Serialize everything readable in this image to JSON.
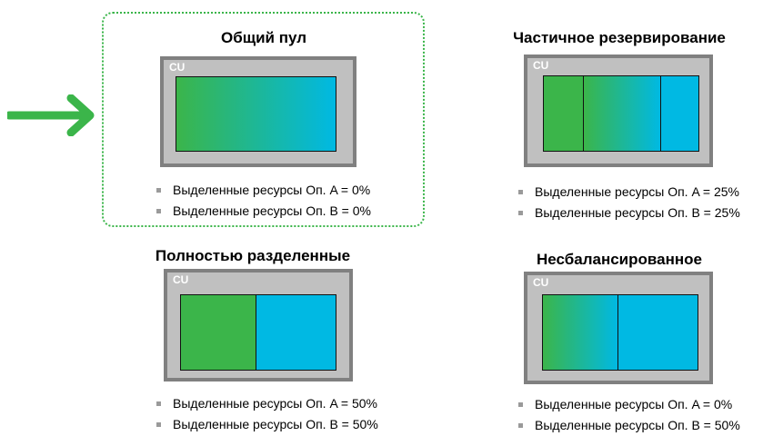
{
  "colors": {
    "op_a": "#3bb54a",
    "op_b": "#00b9e3",
    "highlight": "#3bb54a",
    "cu_frame": "#808080",
    "cu_fill": "#c0c0c0"
  },
  "pointer": {
    "icon": "arrow-right-icon"
  },
  "panels": [
    {
      "title": "Общий пул",
      "cu_label": "CU",
      "bullets": [
        "Выделенные ресурсы Оп. A = 0%",
        "Выделенные ресурсы Оп. B = 0%"
      ]
    },
    {
      "title": "Частичное резервирование",
      "cu_label": "CU",
      "bullets": [
        "Выделенные ресурсы Оп. A = 25%",
        "Выделенные ресурсы Оп. B = 25%"
      ]
    },
    {
      "title": "Полностью разделенные",
      "cu_label": "CU",
      "bullets": [
        "Выделенные ресурсы Оп. A = 50%",
        "Выделенные ресурсы Оп. B = 50%"
      ]
    },
    {
      "title": "Несбалансированное",
      "cu_label": "CU",
      "bullets": [
        "Выделенные ресурсы Оп. A = 0%",
        "Выделенные ресурсы Оп. B = 50%"
      ]
    }
  ]
}
